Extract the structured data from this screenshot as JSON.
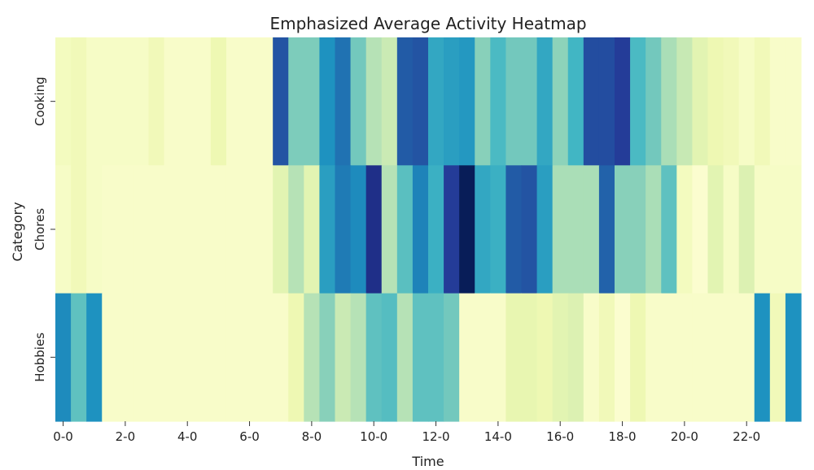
{
  "chart_data": {
    "type": "heatmap",
    "title": "Emphasized Average Activity Heatmap",
    "xlabel": "Time",
    "ylabel": "Category",
    "rows": [
      "Cooking",
      "Chores",
      "Hobbies"
    ],
    "columns": [
      "0-0",
      "0-30",
      "1-0",
      "1-30",
      "2-0",
      "2-30",
      "3-0",
      "3-30",
      "4-0",
      "4-30",
      "5-0",
      "5-30",
      "6-0",
      "6-30",
      "7-0",
      "7-30",
      "8-0",
      "8-30",
      "9-0",
      "9-30",
      "10-0",
      "10-30",
      "11-0",
      "11-30",
      "12-0",
      "12-30",
      "13-0",
      "13-30",
      "14-0",
      "14-30",
      "15-0",
      "15-30",
      "16-0",
      "16-30",
      "17-0",
      "17-30",
      "18-0",
      "18-30",
      "19-0",
      "19-30",
      "20-0",
      "20-30",
      "21-0",
      "21-30",
      "22-0",
      "22-30",
      "23-0",
      "23-30"
    ],
    "x_tick_labels": [
      "0-0",
      "2-0",
      "4-0",
      "6-0",
      "8-0",
      "10-0",
      "12-0",
      "14-0",
      "16-0",
      "18-0",
      "20-0",
      "22-0"
    ],
    "colorscale": "YlGnBu",
    "vmin": 0,
    "vmax": 1,
    "values": [
      [
        0.08,
        0.1,
        0.06,
        0.06,
        0.06,
        0.06,
        0.1,
        0.05,
        0.05,
        0.05,
        0.12,
        0.05,
        0.05,
        0.05,
        0.78,
        0.38,
        0.38,
        0.62,
        0.7,
        0.4,
        0.28,
        0.24,
        0.76,
        0.78,
        0.55,
        0.58,
        0.6,
        0.36,
        0.48,
        0.4,
        0.4,
        0.55,
        0.35,
        0.5,
        0.8,
        0.8,
        0.85,
        0.48,
        0.4,
        0.3,
        0.25,
        0.16,
        0.12,
        0.1,
        0.06,
        0.1,
        0.05,
        0.05
      ],
      [
        0.06,
        0.1,
        0.06,
        0.05,
        0.05,
        0.05,
        0.05,
        0.05,
        0.05,
        0.05,
        0.05,
        0.05,
        0.05,
        0.05,
        0.16,
        0.28,
        0.16,
        0.58,
        0.68,
        0.64,
        0.9,
        0.28,
        0.45,
        0.66,
        0.52,
        0.85,
        1.0,
        0.55,
        0.52,
        0.76,
        0.78,
        0.58,
        0.3,
        0.3,
        0.3,
        0.74,
        0.36,
        0.36,
        0.3,
        0.44,
        0.08,
        0.03,
        0.16,
        0.06,
        0.18,
        0.06,
        0.06,
        0.06
      ],
      [
        0.64,
        0.44,
        0.62,
        0.05,
        0.05,
        0.05,
        0.05,
        0.05,
        0.05,
        0.05,
        0.05,
        0.05,
        0.05,
        0.05,
        0.05,
        0.12,
        0.28,
        0.36,
        0.24,
        0.28,
        0.44,
        0.46,
        0.28,
        0.44,
        0.44,
        0.4,
        0.05,
        0.05,
        0.05,
        0.14,
        0.14,
        0.12,
        0.16,
        0.18,
        0.05,
        0.1,
        0.03,
        0.12,
        0.05,
        0.05,
        0.05,
        0.05,
        0.05,
        0.05,
        0.05,
        0.62,
        0.1,
        0.62
      ]
    ]
  }
}
